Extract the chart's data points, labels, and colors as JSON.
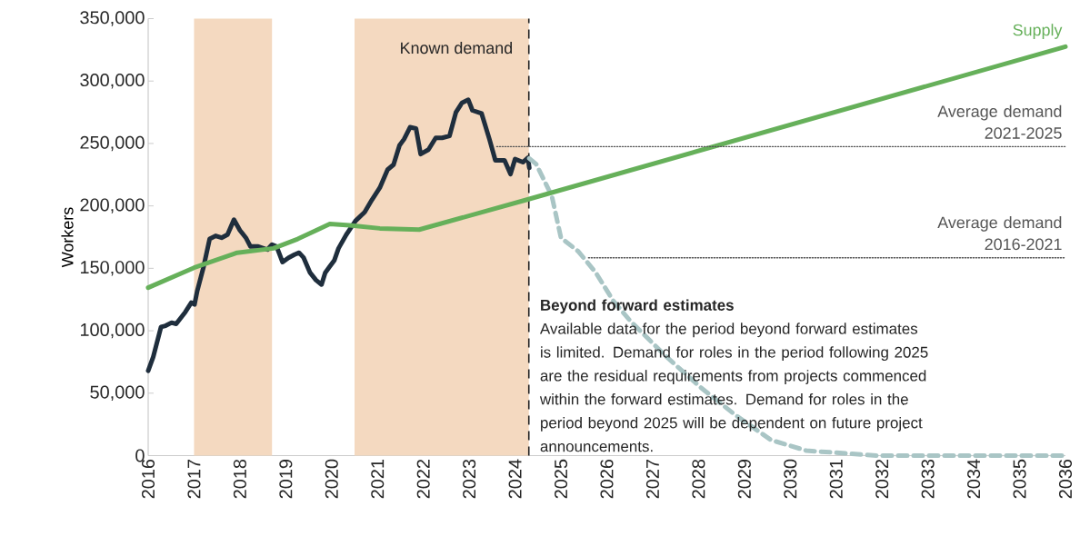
{
  "chart_data": {
    "type": "line",
    "ylabel": "Workers",
    "xlim": [
      2016,
      2036
    ],
    "ylim": [
      0,
      350000
    ],
    "xticks": [
      2016,
      2017,
      2018,
      2019,
      2020,
      2021,
      2022,
      2023,
      2024,
      2025,
      2026,
      2027,
      2028,
      2029,
      2030,
      2031,
      2032,
      2033,
      2034,
      2035,
      2036
    ],
    "yticks": [
      0,
      {
        "value": 50000,
        "label": "50,000"
      },
      {
        "value": 100000,
        "label": "100,000"
      },
      {
        "value": 150000,
        "label": "150,000"
      },
      {
        "value": 200000,
        "label": "200,000"
      },
      {
        "value": 250000,
        "label": "250,000"
      },
      {
        "value": 300000,
        "label": "300,000"
      },
      {
        "value": 350000,
        "label": "350,000"
      }
    ],
    "bands": [
      {
        "axis": "x",
        "from": 2017.0,
        "to": 2018.7,
        "color": "#f4d9c0"
      },
      {
        "axis": "x",
        "from": 2020.5,
        "to": 2024.3,
        "color": "#f4d9c0",
        "label": "Known demand"
      }
    ],
    "ref_lines": [
      {
        "axis": "x",
        "value": 2024.3,
        "color": "#222222",
        "line_style": "dashed"
      }
    ],
    "series": [
      {
        "color": "#1f2e3d",
        "x": [
          2016.0,
          2016.11,
          2016.28,
          2016.38,
          2016.51,
          2016.61,
          2016.81,
          2016.94,
          2017.01,
          2017.07,
          2017.21,
          2017.34,
          2017.47,
          2017.6,
          2017.73,
          2017.87,
          2018.0,
          2018.13,
          2018.23,
          2018.4,
          2018.6,
          2018.7,
          2018.8,
          2018.93,
          2019.06,
          2019.19,
          2019.29,
          2019.39,
          2019.53,
          2019.66,
          2019.78,
          2019.86,
          2019.96,
          2020.06,
          2020.15,
          2020.32,
          2020.52,
          2020.72,
          2020.88,
          2021.05,
          2021.22,
          2021.35,
          2021.48,
          2021.58,
          2021.71,
          2021.84,
          2021.94,
          2022.11,
          2022.27,
          2022.41,
          2022.57,
          2022.71,
          2022.84,
          2022.98,
          2023.07,
          2023.27,
          2023.44,
          2023.57,
          2023.77,
          2023.9,
          2024.0,
          2024.17,
          2024.28,
          2024.31
        ],
        "values": [
          68000,
          79000,
          103000,
          104000,
          106500,
          105500,
          115000,
          122500,
          121000,
          132000,
          151500,
          173500,
          176000,
          174500,
          177000,
          189000,
          180500,
          174500,
          167500,
          167500,
          165000,
          169000,
          167500,
          155000,
          158500,
          161000,
          162500,
          158500,
          146500,
          140500,
          137000,
          146500,
          151500,
          156500,
          166000,
          177000,
          188000,
          195000,
          205000,
          214500,
          229000,
          233000,
          248500,
          253500,
          263000,
          262000,
          241500,
          245000,
          254500,
          254500,
          256000,
          275000,
          282500,
          285000,
          276500,
          274000,
          253500,
          236500,
          236500,
          225500,
          237500,
          235000,
          238500,
          230500
        ]
      },
      {
        "color": "#a9c5c5",
        "line_style": "dashed",
        "x": [
          2024.31,
          2024.46,
          2024.8,
          2025.0,
          2025.38,
          2025.76,
          2026.14,
          2026.52,
          2027.29,
          2028.05,
          2028.82,
          2029.58,
          2030.35,
          2031.88,
          2036.0
        ],
        "values": [
          238000,
          233500,
          208000,
          174500,
          163500,
          146500,
          124000,
          107500,
          79500,
          54500,
          32000,
          12500,
          4000,
          0,
          0
        ]
      },
      {
        "name": "Supply",
        "color": "#66b05a",
        "x": [
          2016.0,
          2017.0,
          2017.94,
          2018.73,
          2019.26,
          2019.96,
          2020.39,
          2021.05,
          2021.91,
          2024.26,
          2036.0
        ],
        "values": [
          134500,
          150500,
          162500,
          166000,
          173500,
          185500,
          184500,
          182000,
          181000,
          205000,
          327500
        ]
      },
      {
        "name": "Average demand 2021-2025",
        "color": "#555555",
        "line_style": "dotted",
        "x": [
          2023.6,
          2036.0
        ],
        "values": [
          247500,
          247500
        ]
      },
      {
        "name": "Average demand 2016-2021",
        "color": "#555555",
        "line_style": "dotted",
        "x": [
          2025.6,
          2036.0
        ],
        "values": [
          158500,
          158500
        ]
      }
    ],
    "annotations": [
      "Beyond forward estimates",
      "Available data for the period beyond forward estimates is limited. Demand for roles in the period following 2025 are the residual requirements from projects commenced within the forward estimates. Demand for roles in the period beyond 2025 will be dependent on future project announcements."
    ]
  }
}
